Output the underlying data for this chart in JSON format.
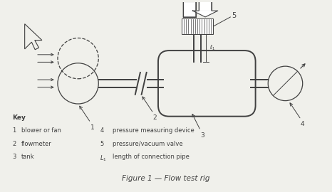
{
  "title": "Figure 1 — Flow test rig",
  "background_color": "#f0f0eb",
  "key_title": "Key",
  "key_items_left": [
    [
      "1",
      "blower or fan"
    ],
    [
      "2",
      "flowmeter"
    ],
    [
      "3",
      "tank"
    ]
  ],
  "key_items_right": [
    [
      "4",
      "pressure measuring device"
    ],
    [
      "5",
      "pressure/vacuum valve"
    ],
    [
      "L₁",
      "length of connection pipe"
    ]
  ],
  "line_color": "#404040",
  "fig_width": 4.66,
  "fig_height": 2.7,
  "dpi": 100
}
